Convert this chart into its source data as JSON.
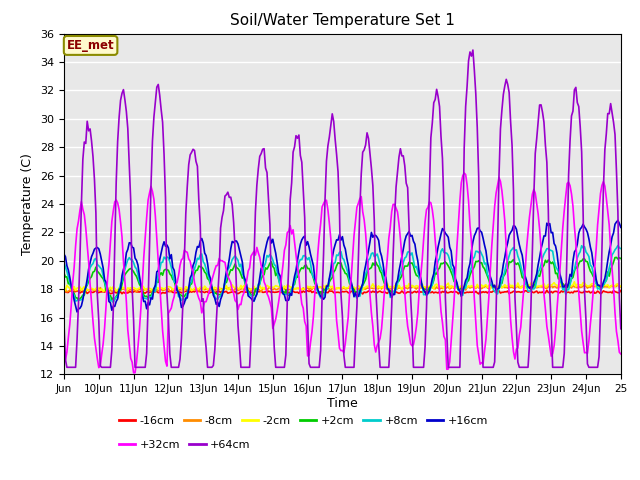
{
  "title": "Soil/Water Temperature Set 1",
  "xlabel": "Time",
  "ylabel": "Temperature (C)",
  "ylim": [
    12,
    36
  ],
  "yticks": [
    12,
    14,
    16,
    18,
    20,
    22,
    24,
    26,
    28,
    30,
    32,
    34,
    36
  ],
  "xlim": [
    0,
    16
  ],
  "xtick_labels": [
    "Jun",
    "10Jun",
    "11Jun",
    "12Jun",
    "13Jun",
    "14Jun",
    "15Jun",
    "16Jun",
    "17Jun",
    "18Jun",
    "19Jun",
    "20Jun",
    "21Jun",
    "22Jun",
    "23Jun",
    "24Jun",
    "25"
  ],
  "annotation_text": "EE_met",
  "annotation_color": "#8B0000",
  "annotation_bg": "#FFFACD",
  "annotation_border": "#8B8B00",
  "background_color": "#E8E8E8",
  "series": [
    {
      "label": "-16cm",
      "color": "#FF0000",
      "lw": 1.2
    },
    {
      "label": "-8cm",
      "color": "#FF8C00",
      "lw": 1.2
    },
    {
      "label": "-2cm",
      "color": "#FFFF00",
      "lw": 1.2
    },
    {
      "label": "+2cm",
      "color": "#00CC00",
      "lw": 1.2
    },
    {
      "label": "+8cm",
      "color": "#00CCCC",
      "lw": 1.2
    },
    {
      "label": "+16cm",
      "color": "#0000CC",
      "lw": 1.2
    },
    {
      "label": "+32cm",
      "color": "#FF00FF",
      "lw": 1.2
    },
    {
      "label": "+64cm",
      "color": "#9900CC",
      "lw": 1.2
    }
  ],
  "legend_ncol_row1": 6,
  "legend_ncol_row2": 2
}
